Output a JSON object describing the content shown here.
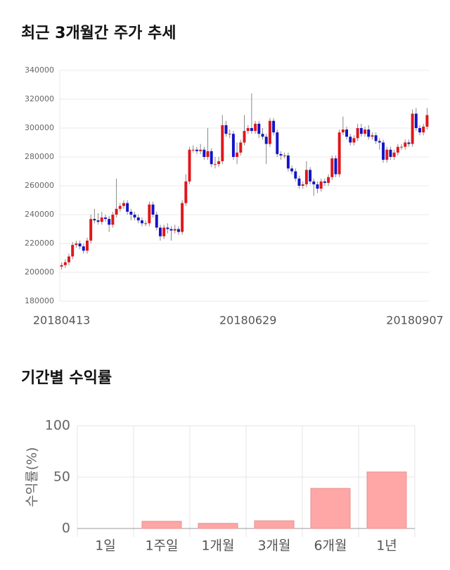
{
  "chart_data": [
    {
      "type": "candlestick",
      "title": "최근 3개월간 주가 추세",
      "categories": [
        "20180413",
        null,
        null,
        null,
        null,
        null,
        null,
        null,
        null,
        null,
        null,
        null,
        null,
        null,
        null,
        null,
        null,
        null,
        null,
        null,
        null,
        null,
        null,
        null,
        null,
        null,
        null,
        null,
        null,
        null,
        null,
        null,
        null,
        null,
        null,
        null,
        null,
        null,
        null,
        null,
        null,
        null,
        null,
        null,
        null,
        null,
        null,
        null,
        null,
        null,
        null,
        "20180629",
        null,
        null,
        null,
        null,
        null,
        null,
        null,
        null,
        null,
        null,
        null,
        null,
        null,
        null,
        null,
        null,
        null,
        null,
        null,
        null,
        null,
        null,
        null,
        null,
        null,
        null,
        null,
        null,
        null,
        null,
        null,
        null,
        null,
        null,
        null,
        null,
        null,
        null,
        null,
        null,
        null,
        null,
        null,
        null,
        null,
        null,
        null,
        null,
        "20180907"
      ],
      "open": [
        204000,
        205000,
        207000,
        211000,
        219000,
        220000,
        218000,
        215000,
        222000,
        237000,
        236000,
        235000,
        238000,
        237000,
        233000,
        240000,
        244000,
        246000,
        248000,
        242000,
        240000,
        238000,
        236000,
        234000,
        234000,
        247000,
        240000,
        231000,
        225000,
        231000,
        230000,
        229000,
        230000,
        228000,
        248000,
        263000,
        285000,
        285000,
        284000,
        285000,
        280000,
        284000,
        275000,
        275000,
        277000,
        302000,
        296000,
        296000,
        280000,
        283000,
        290000,
        298000,
        300000,
        298000,
        303000,
        296000,
        294000,
        289000,
        305000,
        297000,
        282000,
        281000,
        281000,
        272000,
        270000,
        265000,
        260000,
        261000,
        271000,
        263000,
        261000,
        258000,
        263000,
        262000,
        266000,
        279000,
        268000,
        297000,
        299000,
        294000,
        290000,
        293000,
        300000,
        296000,
        299000,
        294000,
        295000,
        291000,
        290000,
        278000,
        285000,
        280000,
        283000,
        287000,
        287000,
        290000,
        289000,
        310000,
        300000,
        297000,
        301000
      ],
      "high": [
        207000,
        209000,
        213000,
        221000,
        222000,
        222000,
        220000,
        224000,
        240000,
        244000,
        241000,
        242000,
        240000,
        239000,
        242000,
        265000,
        248000,
        250000,
        250000,
        244000,
        242000,
        240000,
        238000,
        236000,
        249000,
        249000,
        242000,
        233000,
        233000,
        234000,
        232000,
        233000,
        232000,
        250000,
        268000,
        287000,
        288000,
        287000,
        289000,
        287000,
        300000,
        286000,
        280000,
        280000,
        309000,
        305000,
        299000,
        298000,
        290000,
        292000,
        309000,
        302000,
        324000,
        305000,
        305000,
        300000,
        296000,
        307000,
        307000,
        299000,
        284000,
        283000,
        283000,
        274000,
        272000,
        267000,
        263000,
        277000,
        273000,
        265000,
        263000,
        265000,
        265000,
        268000,
        281000,
        281000,
        299000,
        308000,
        301000,
        296000,
        295000,
        303000,
        303000,
        301000,
        302000,
        297000,
        297000,
        293000,
        292000,
        287000,
        287000,
        285000,
        289000,
        289000,
        292000,
        292000,
        313000,
        314000,
        302000,
        303000,
        314000
      ],
      "low": [
        202000,
        203000,
        205000,
        209000,
        217000,
        216000,
        213000,
        213000,
        220000,
        234000,
        233000,
        233000,
        235000,
        228000,
        231000,
        238000,
        242000,
        244000,
        240000,
        236000,
        236000,
        234000,
        232000,
        232000,
        232000,
        238000,
        229000,
        222000,
        223000,
        227000,
        222000,
        227000,
        226000,
        226000,
        246000,
        261000,
        283000,
        282000,
        282000,
        278000,
        278000,
        273000,
        272000,
        273000,
        275000,
        294000,
        293000,
        278000,
        275000,
        281000,
        288000,
        296000,
        296000,
        296000,
        293000,
        292000,
        275000,
        287000,
        295000,
        280000,
        278000,
        279000,
        270000,
        268000,
        263000,
        258000,
        258000,
        259000,
        261000,
        253000,
        255000,
        256000,
        260000,
        260000,
        264000,
        266000,
        266000,
        295000,
        292000,
        288000,
        288000,
        291000,
        294000,
        294000,
        292000,
        292000,
        289000,
        285000,
        276000,
        276000,
        278000,
        278000,
        281000,
        285000,
        285000,
        287000,
        287000,
        298000,
        295000,
        295000,
        299000
      ],
      "close": [
        205000,
        207000,
        211000,
        219000,
        220000,
        218000,
        215000,
        222000,
        237000,
        236000,
        235000,
        238000,
        237000,
        233000,
        240000,
        244000,
        246000,
        248000,
        242000,
        240000,
        238000,
        236000,
        234000,
        234000,
        247000,
        240000,
        231000,
        225000,
        231000,
        230000,
        229000,
        230000,
        228000,
        248000,
        263000,
        285000,
        285000,
        284000,
        285000,
        280000,
        284000,
        275000,
        275000,
        277000,
        302000,
        296000,
        296000,
        280000,
        283000,
        290000,
        298000,
        300000,
        298000,
        303000,
        296000,
        294000,
        289000,
        305000,
        297000,
        282000,
        281000,
        281000,
        272000,
        270000,
        265000,
        260000,
        261000,
        271000,
        263000,
        261000,
        258000,
        263000,
        262000,
        266000,
        279000,
        268000,
        297000,
        299000,
        294000,
        290000,
        293000,
        300000,
        296000,
        299000,
        294000,
        295000,
        291000,
        290000,
        278000,
        285000,
        280000,
        283000,
        287000,
        287000,
        290000,
        289000,
        310000,
        300000,
        297000,
        301000,
        309000
      ],
      "up_color": "#e0161c",
      "down_color": "#1414c8",
      "ylim": [
        180000,
        340000
      ],
      "yticks": [
        180000,
        200000,
        220000,
        240000,
        260000,
        280000,
        300000,
        320000,
        340000
      ],
      "grid": true
    },
    {
      "type": "bar",
      "title": "기간별 수익률",
      "y_label": "수익률(%)",
      "categories": [
        "1일",
        "1주일",
        "1개월",
        "3개월",
        "6개월",
        "1년"
      ],
      "values": [
        0,
        7,
        5,
        7.5,
        39,
        55
      ],
      "color": "#ffa6a6",
      "ylim": [
        0,
        100
      ],
      "yticks": [
        0,
        50,
        100
      ],
      "grid": true
    }
  ]
}
